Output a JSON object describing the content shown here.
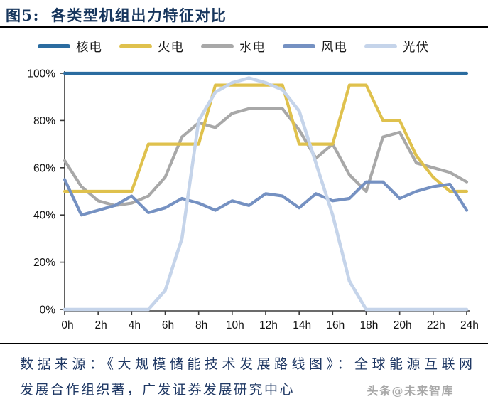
{
  "header": {
    "figure_label": "图5:",
    "title": "各类型机组出力特征对比"
  },
  "chart_data": {
    "type": "line",
    "title": "各类型机组出力特征对比",
    "xlabel": "",
    "ylabel": "",
    "ylim": [
      0,
      100
    ],
    "xlim": [
      0,
      24
    ],
    "grid": false,
    "legend_position": "top",
    "x": [
      0,
      1,
      2,
      3,
      4,
      5,
      6,
      7,
      8,
      9,
      10,
      11,
      12,
      13,
      14,
      15,
      16,
      17,
      18,
      19,
      20,
      21,
      22,
      23,
      24
    ],
    "x_ticks": [
      {
        "value": 0,
        "label": "0h"
      },
      {
        "value": 2,
        "label": "2h"
      },
      {
        "value": 4,
        "label": "4h"
      },
      {
        "value": 6,
        "label": "6h"
      },
      {
        "value": 8,
        "label": "8h"
      },
      {
        "value": 10,
        "label": "10h"
      },
      {
        "value": 12,
        "label": "12h"
      },
      {
        "value": 14,
        "label": "14h"
      },
      {
        "value": 16,
        "label": "16h"
      },
      {
        "value": 18,
        "label": "18h"
      },
      {
        "value": 20,
        "label": "20h"
      },
      {
        "value": 22,
        "label": "22h"
      },
      {
        "value": 24,
        "label": "24h"
      }
    ],
    "y_ticks": [
      {
        "value": 0,
        "label": "0%"
      },
      {
        "value": 20,
        "label": "20%"
      },
      {
        "value": 40,
        "label": "40%"
      },
      {
        "value": 60,
        "label": "60%"
      },
      {
        "value": 80,
        "label": "80%"
      },
      {
        "value": 100,
        "label": "100%"
      }
    ],
    "series": [
      {
        "id": "nuclear",
        "name": "核电",
        "color": "#2B6CA0",
        "width": 4.2,
        "values": [
          100,
          100,
          100,
          100,
          100,
          100,
          100,
          100,
          100,
          100,
          100,
          100,
          100,
          100,
          100,
          100,
          100,
          100,
          100,
          100,
          100,
          100,
          100,
          100,
          100
        ]
      },
      {
        "id": "thermal",
        "name": "火电",
        "color": "#DFC14D",
        "width": 4.2,
        "values": [
          50,
          50,
          50,
          50,
          50,
          70,
          70,
          70,
          70,
          95,
          95,
          95,
          95,
          95,
          70,
          70,
          70,
          95,
          95,
          80,
          80,
          65,
          56,
          50,
          50
        ]
      },
      {
        "id": "hydro",
        "name": "水电",
        "color": "#A8A8A8",
        "width": 4.2,
        "values": [
          63,
          52,
          46,
          44,
          45,
          48,
          56,
          73,
          79,
          77,
          83,
          85,
          85,
          85,
          76,
          64,
          70,
          57,
          50,
          73,
          75,
          62,
          60,
          58,
          54
        ]
      },
      {
        "id": "wind",
        "name": "风电",
        "color": "#7591C2",
        "width": 4.2,
        "values": [
          55,
          40,
          42,
          44,
          48,
          41,
          43,
          47,
          45,
          42,
          46,
          44,
          49,
          48,
          43,
          49,
          46,
          47,
          54,
          54,
          47,
          50,
          52,
          53,
          42
        ]
      },
      {
        "id": "solar",
        "name": "光伏",
        "color": "#C5D4EA",
        "width": 4.6,
        "values": [
          0,
          0,
          0,
          0,
          0,
          0,
          8,
          30,
          80,
          92,
          96,
          98,
          96,
          93,
          84,
          62,
          40,
          12,
          0,
          0,
          0,
          0,
          0,
          0,
          0
        ]
      }
    ],
    "draw_order": [
      "nuclear",
      "hydro",
      "thermal",
      "wind",
      "solar"
    ]
  },
  "footer": {
    "source_line1": "数据来源：《大规模储能技术发展路线图》：全球能源互联网",
    "source_line2": "发展合作组织著，广发证券发展研究中心",
    "watermark": "头条@未来智库"
  }
}
